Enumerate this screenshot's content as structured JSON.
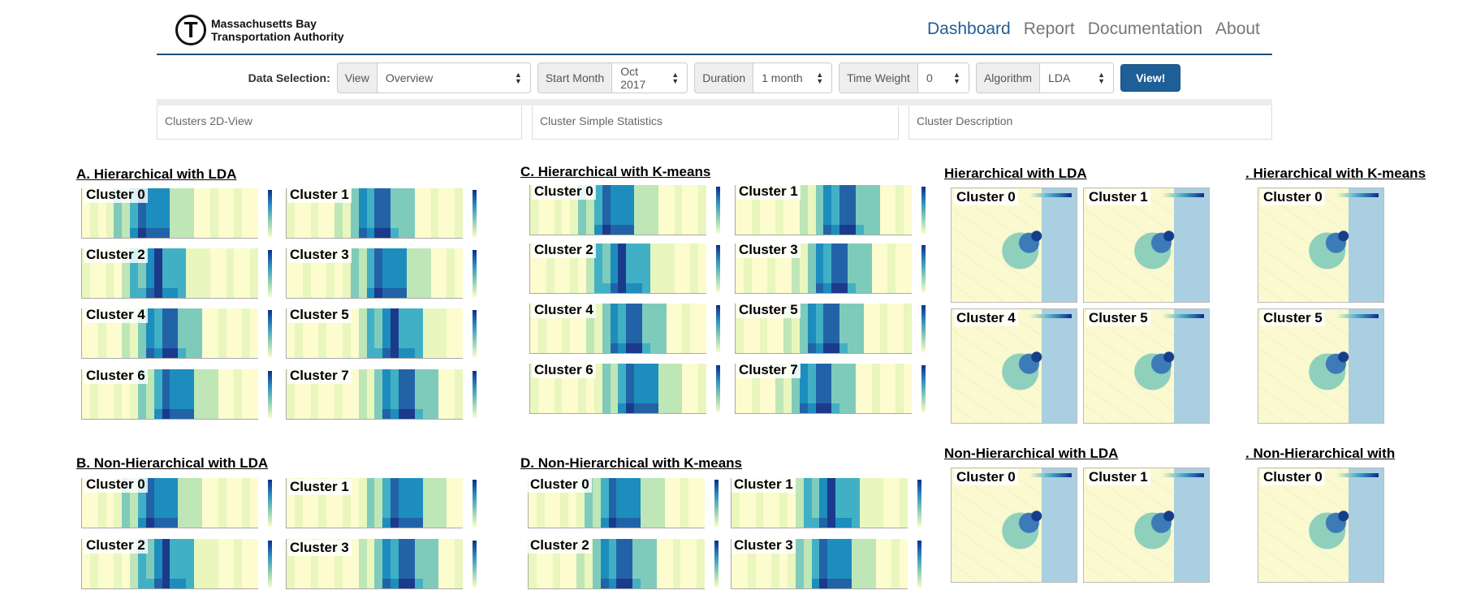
{
  "brand": {
    "logo_letter": "T",
    "line1": "Massachusetts Bay",
    "line2": "Transportation Authority"
  },
  "nav": {
    "items": [
      "Dashboard",
      "Report",
      "Documentation",
      "About"
    ],
    "active": "Dashboard"
  },
  "selection": {
    "label": "Data Selection:",
    "view": {
      "addon": "View",
      "value": "Overview"
    },
    "start_month": {
      "addon": "Start Month",
      "value": "Oct 2017"
    },
    "duration": {
      "addon": "Duration",
      "value": "1 month"
    },
    "time_weight": {
      "addon": "Time Weight",
      "value": "0"
    },
    "algorithm": {
      "addon": "Algorithm",
      "value": "LDA"
    },
    "view_button": "View!"
  },
  "panels": [
    "Clusters 2D-View",
    "Cluster Simple Statistics",
    "Cluster Description"
  ],
  "sections": {
    "a": "A. Hierarchical with LDA",
    "b": "B. Non-Hierarchical with LDA",
    "c": "C. Hierarchical with K-means",
    "d": "D. Non-Hierarchical with K-means",
    "map1": " Hierarchical with LDA",
    "map2": ". Hierarchical with K-means",
    "map3": " Non-Hierarchical with LDA",
    "map4": ". Non-Hierarchical with"
  },
  "clusters": [
    "Cluster 0",
    "Cluster 1",
    "Cluster 2",
    "Cluster 3",
    "Cluster 4",
    "Cluster 5",
    "Cluster 6",
    "Cluster 7"
  ],
  "colors": {
    "accent": "#1f5f97",
    "nav_inactive": "#777777",
    "rule": "#1f4e79"
  }
}
